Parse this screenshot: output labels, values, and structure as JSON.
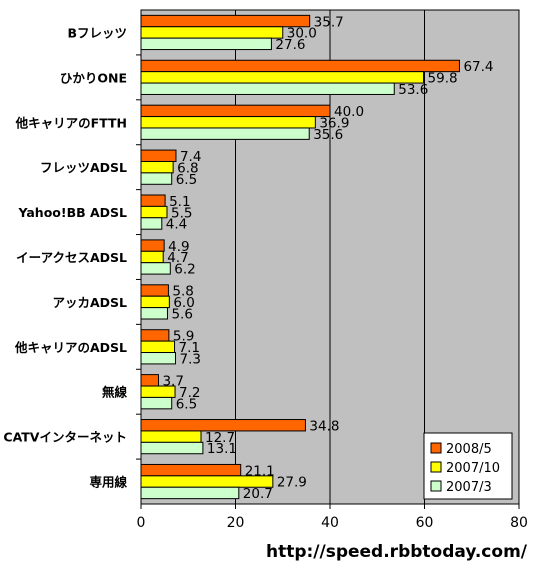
{
  "chart_data": {
    "type": "bar",
    "orientation": "horizontal",
    "categories": [
      "Bフレッツ",
      "ひかりONE",
      "他キャリアのFTTH",
      "フレッツADSL",
      "Yahoo!BB ADSL",
      "イーアクセスADSL",
      "アッカADSL",
      "他キャリアのADSL",
      "無線",
      "CATVインターネット",
      "専用線"
    ],
    "series": [
      {
        "name": "2008/5",
        "color": "#ff6600",
        "values": [
          35.7,
          67.4,
          40.0,
          7.4,
          5.1,
          4.9,
          5.8,
          5.9,
          3.7,
          34.8,
          21.1
        ]
      },
      {
        "name": "2007/10",
        "color": "#ffff00",
        "values": [
          30.0,
          59.8,
          36.9,
          6.8,
          5.5,
          4.7,
          6.0,
          7.1,
          7.2,
          12.7,
          27.9
        ]
      },
      {
        "name": "2007/3",
        "color": "#ccffcc",
        "values": [
          27.6,
          53.6,
          35.6,
          6.5,
          4.4,
          6.2,
          5.6,
          7.3,
          6.5,
          13.1,
          20.7
        ]
      }
    ],
    "xlim": [
      0,
      80
    ],
    "xticks": [
      0,
      20,
      40,
      60,
      80
    ],
    "grid": true,
    "plot_background": "#c0c0c0",
    "legend_position": "bottom-right"
  },
  "footer_url": "http://speed.rbbtoday.com/"
}
